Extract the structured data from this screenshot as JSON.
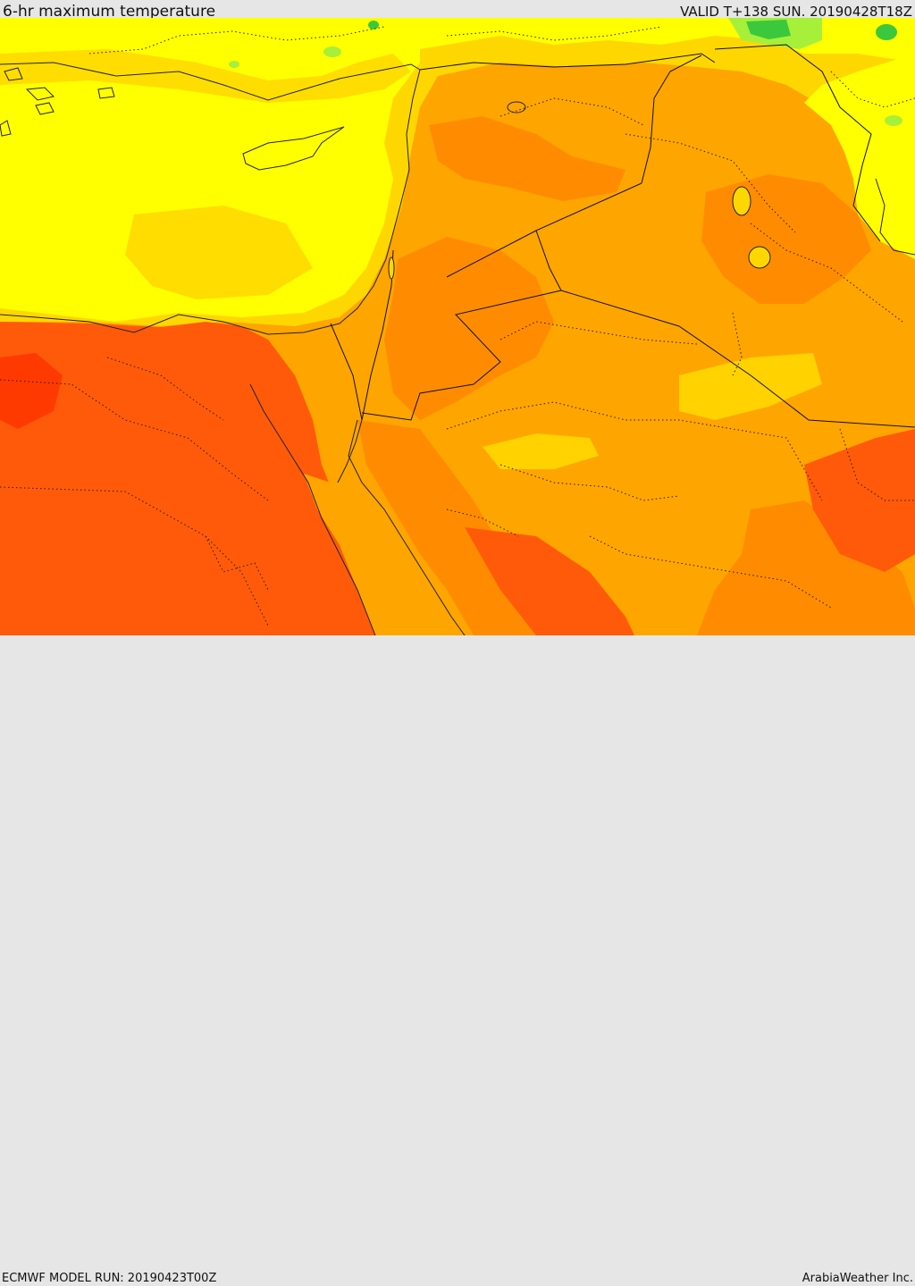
{
  "header": {
    "title": "6-hr maximum temperature",
    "valid": "VALID T+138 SUN. 20190428T18Z"
  },
  "footer": {
    "model_run": "ECMWF MODEL RUN: 20190423T00Z",
    "brand": "ArabiaWeather Inc."
  },
  "map": {
    "parameter": "6-hr maximum temperature",
    "palette": {
      "green": "#3cc83c",
      "light_green": "#a6f03a",
      "yellow": "#ffff00",
      "gold": "#ffd700",
      "orange": "#ffa500",
      "dark_orange": "#ff8c00",
      "red_orange": "#ff5a0a"
    }
  }
}
